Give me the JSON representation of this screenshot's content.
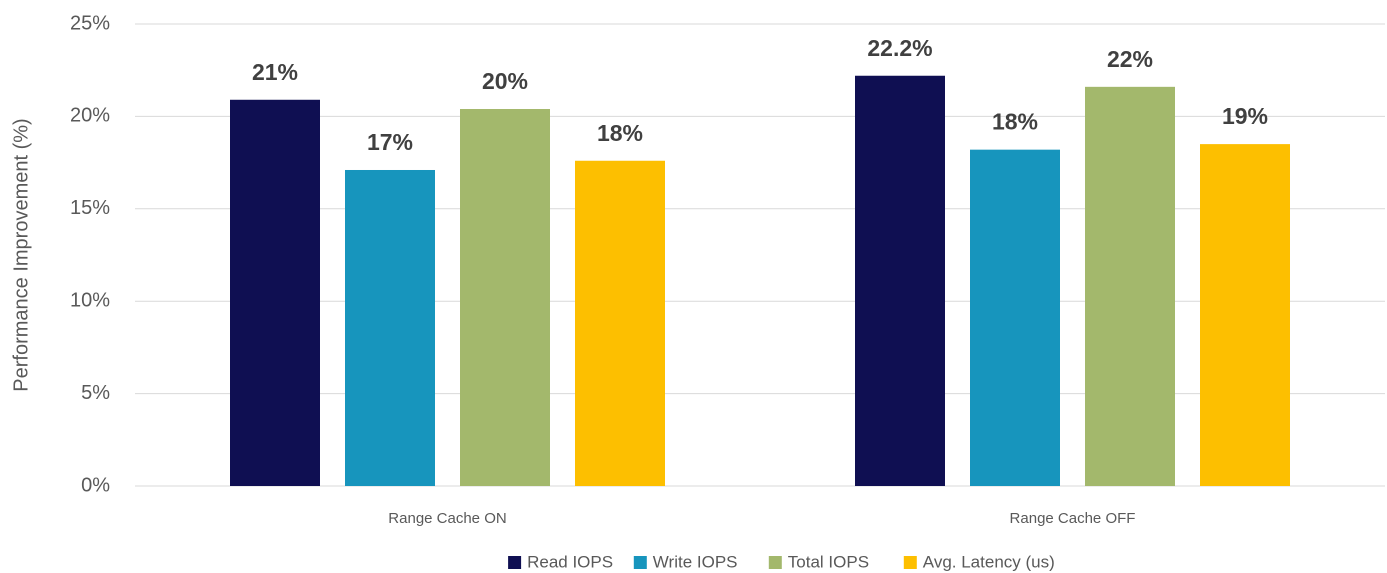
{
  "chart_data": {
    "type": "bar",
    "ylabel": "Performance Improvement (%)",
    "categories": [
      "Range Cache ON",
      "Range Cache OFF"
    ],
    "series": [
      {
        "name": "Read IOPS",
        "color": "#0f0f52",
        "values": [
          20.9,
          22.2
        ],
        "value_labels": [
          "21%",
          "22.2%"
        ]
      },
      {
        "name": "Write IOPS",
        "color": "#1795bd",
        "values": [
          17.1,
          18.2
        ],
        "value_labels": [
          "17%",
          "18%"
        ]
      },
      {
        "name": "Total IOPS",
        "color": "#a3b86c",
        "values": [
          20.4,
          21.6
        ],
        "value_labels": [
          "20%",
          "22%"
        ]
      },
      {
        "name": "Avg. Latency (us)",
        "color": "#fdbf00",
        "values": [
          17.6,
          18.5
        ],
        "value_labels": [
          "18%",
          "19%"
        ]
      }
    ],
    "ylim": [
      0,
      25
    ],
    "yticks": [
      {
        "value": 0,
        "label": "0%"
      },
      {
        "value": 5,
        "label": "5%"
      },
      {
        "value": 10,
        "label": "10%"
      },
      {
        "value": 15,
        "label": "15%"
      },
      {
        "value": 20,
        "label": "20%"
      },
      {
        "value": 25,
        "label": "25%"
      }
    ],
    "grid": true,
    "legend": "bottom"
  }
}
